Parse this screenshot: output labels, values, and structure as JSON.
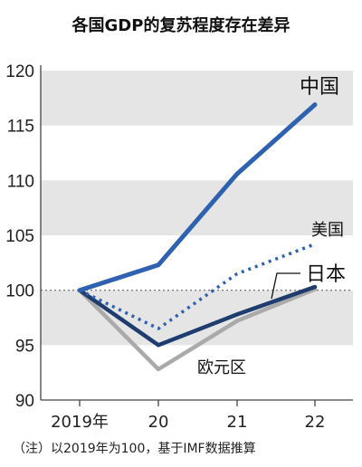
{
  "title": "各国GDP的复苏程度存在差异",
  "note": "（注）以2019年为100，基于IMF数据推算",
  "colors": {
    "band": "#e5e5e5",
    "axis": "#444444",
    "baseline": "#666666"
  },
  "chart_data": {
    "type": "line",
    "categories": [
      "2019年",
      "20",
      "21",
      "22"
    ],
    "ylim": [
      90,
      120
    ],
    "yticks": [
      90,
      95,
      100,
      105,
      110,
      115,
      120
    ],
    "grid": "horizontal shaded bands",
    "series": [
      {
        "name": "中国",
        "values": [
          100,
          102.3,
          110.6,
          116.9
        ],
        "color": "#2e62b0",
        "style": "solid"
      },
      {
        "name": "美国",
        "values": [
          100,
          96.5,
          101.5,
          104.2
        ],
        "color": "#2e62b0",
        "style": "dotted"
      },
      {
        "name": "日本",
        "values": [
          100,
          95.0,
          97.8,
          100.3
        ],
        "color": "#1e3c6e",
        "style": "solid"
      },
      {
        "name": "欧元区",
        "values": [
          100,
          92.8,
          97.2,
          100.1
        ],
        "color": "#aaaaaa",
        "style": "solid"
      }
    ]
  }
}
